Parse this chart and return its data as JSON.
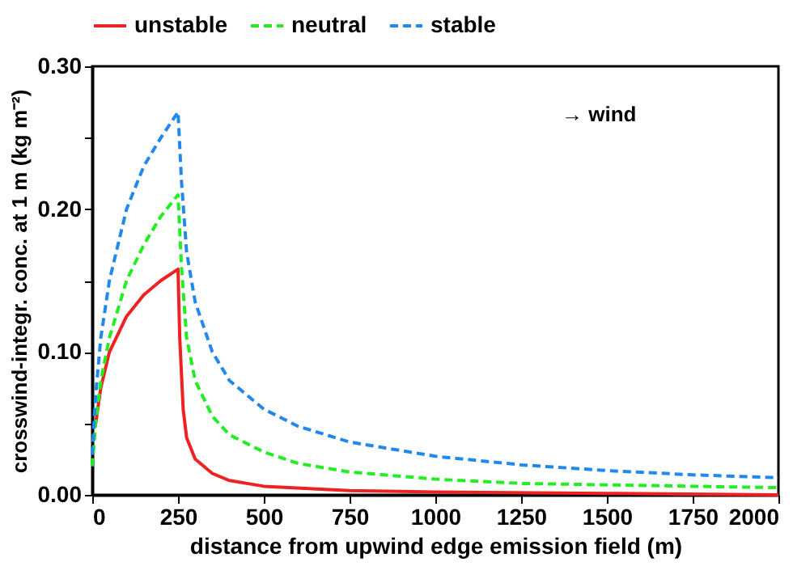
{
  "chart_data": {
    "type": "line",
    "xlabel": "distance from upwind edge emission field (m)",
    "ylabel": "crosswind-integr. conc. at 1 m  (kg m⁻²)",
    "xlim": [
      0,
      2000
    ],
    "xticks": [
      0,
      250,
      500,
      750,
      1000,
      1250,
      1500,
      1750,
      2000
    ],
    "ylim": [
      0,
      0.3
    ],
    "yticks": [
      {
        "value": 0,
        "label": "0.00"
      },
      {
        "value": 0.05,
        "label": null
      },
      {
        "value": 0.1,
        "label": "0.10"
      },
      {
        "value": 0.15,
        "label": null
      },
      {
        "value": 0.2,
        "label": "0.20"
      },
      {
        "value": 0.25,
        "label": null
      },
      {
        "value": 0.3,
        "label": "0.30"
      }
    ],
    "grid": false,
    "legend": "top",
    "annotations": [
      "→ wind"
    ],
    "series": [
      {
        "name": "unstable",
        "color": "#ee2222",
        "line_style": "solid",
        "x": [
          10,
          25,
          50,
          100,
          150,
          200,
          250,
          255,
          265,
          275,
          300,
          350,
          400,
          500,
          750,
          1000,
          1500,
          2000
        ],
        "values": [
          0.05,
          0.075,
          0.1,
          0.125,
          0.14,
          0.15,
          0.158,
          0.11,
          0.06,
          0.04,
          0.025,
          0.015,
          0.01,
          0.006,
          0.003,
          0.002,
          0.001,
          0.0
        ]
      },
      {
        "name": "neutral",
        "color": "#22ee22",
        "line_style": "dashed",
        "x": [
          0,
          10,
          25,
          50,
          100,
          150,
          200,
          250,
          260,
          275,
          300,
          350,
          400,
          500,
          600,
          750,
          1000,
          1250,
          1500,
          1750,
          2000
        ],
        "values": [
          0.02,
          0.05,
          0.08,
          0.11,
          0.15,
          0.175,
          0.195,
          0.21,
          0.16,
          0.11,
          0.08,
          0.055,
          0.042,
          0.03,
          0.022,
          0.016,
          0.011,
          0.008,
          0.007,
          0.006,
          0.005
        ]
      },
      {
        "name": "stable",
        "color": "#2288ee",
        "line_style": "dashed",
        "x": [
          0,
          10,
          25,
          50,
          100,
          150,
          200,
          250,
          260,
          275,
          300,
          350,
          400,
          500,
          600,
          750,
          1000,
          1250,
          1500,
          1750,
          2000
        ],
        "values": [
          0.028,
          0.07,
          0.11,
          0.15,
          0.2,
          0.23,
          0.25,
          0.268,
          0.22,
          0.17,
          0.135,
          0.1,
          0.08,
          0.06,
          0.048,
          0.037,
          0.027,
          0.021,
          0.017,
          0.014,
          0.012
        ]
      }
    ]
  }
}
